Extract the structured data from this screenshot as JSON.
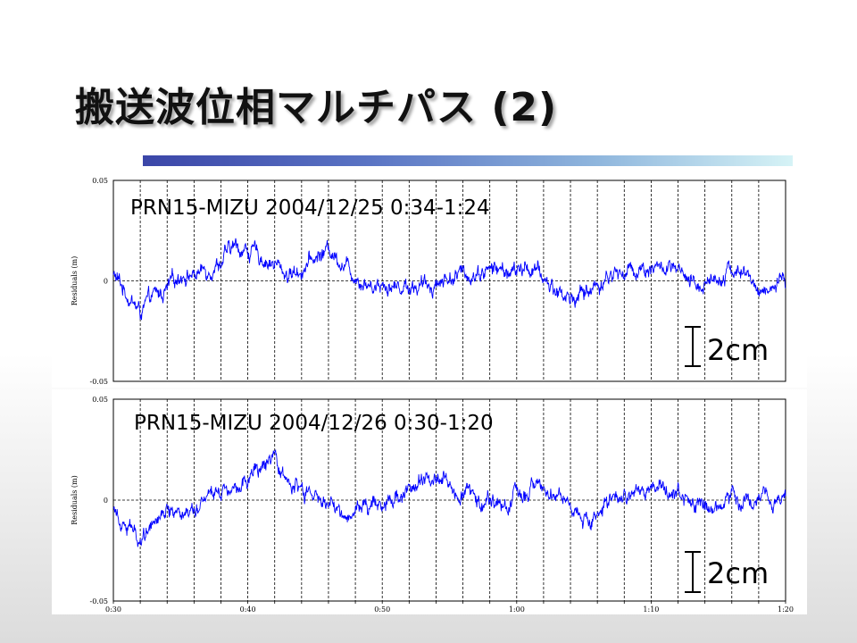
{
  "slide": {
    "title": "搬送波位相マルチパス (2)"
  },
  "chart_data": [
    {
      "type": "line",
      "title": "PRN15-MIZU 2004/12/25 0:34-1:24",
      "ylabel": "Residuals (m)",
      "ylim": [
        -0.05,
        0.05
      ],
      "y_ticks": [
        "0.05",
        "0",
        "-0.05"
      ],
      "xlim": [
        "0:30",
        "1:20"
      ],
      "x_ticks": [],
      "grid": "vertical dashed lines every 2 minutes, horizontal dashed line at 0",
      "scale_bar": "2cm",
      "color": "#0000ff",
      "series": [
        {
          "x_minutes": [
            0,
            1,
            2,
            3,
            4,
            5,
            6,
            7,
            8,
            9,
            10,
            11,
            12,
            13,
            14,
            15,
            16,
            17,
            18,
            19,
            20,
            21,
            22,
            23,
            24,
            25,
            26,
            27,
            28,
            29,
            30,
            31,
            32,
            33,
            34,
            35,
            36,
            37,
            38,
            39,
            40,
            41,
            42,
            43,
            44,
            45,
            46,
            47,
            48,
            49,
            50
          ],
          "values": [
            0.003,
            -0.006,
            -0.016,
            -0.008,
            -0.005,
            0.004,
            0.003,
            0.006,
            0.01,
            0.017,
            0.015,
            0.012,
            0.008,
            0.003,
            0.006,
            0.011,
            0.016,
            0.01,
            0.003,
            -0.002,
            -0.001,
            -0.003,
            -0.002,
            -0.003,
            -0.001,
            0.002,
            0.003,
            0.004,
            0.006,
            0.005,
            0.004,
            0.007,
            0.001,
            -0.005,
            -0.009,
            -0.006,
            -0.002,
            0.003,
            0.004,
            0.006,
            0.007,
            0.006,
            0.004,
            -0.003,
            -0.001,
            0.003,
            0.006,
            0.003,
            -0.005,
            -0.003,
            -0.002
          ]
        }
      ]
    },
    {
      "type": "line",
      "title": "PRN15-MIZU 2004/12/26 0:30-1:20",
      "ylabel": "Residuals (m)",
      "ylim": [
        -0.05,
        0.05
      ],
      "y_ticks": [
        "0.05",
        "0",
        "-0.05"
      ],
      "xlim": [
        "0:30",
        "1:20"
      ],
      "x_ticks": [
        "0:30",
        "0:40",
        "0:50",
        "1:00",
        "1:10",
        "1:20"
      ],
      "grid": "vertical dashed lines every 2 minutes, horizontal dashed line at 0",
      "scale_bar": "2cm",
      "color": "#0000ff",
      "series": [
        {
          "x_minutes": [
            0,
            1,
            2,
            3,
            4,
            5,
            6,
            7,
            8,
            9,
            10,
            11,
            12,
            13,
            14,
            15,
            16,
            17,
            18,
            19,
            20,
            21,
            22,
            23,
            24,
            25,
            26,
            27,
            28,
            29,
            30,
            31,
            32,
            33,
            34,
            35,
            36,
            37,
            38,
            39,
            40,
            41,
            42,
            43,
            44,
            45,
            46,
            47,
            48,
            49,
            50
          ],
          "values": [
            -0.002,
            -0.012,
            -0.02,
            -0.008,
            -0.004,
            -0.006,
            -0.003,
            0.004,
            0.006,
            0.008,
            0.011,
            0.016,
            0.017,
            0.009,
            0.004,
            0.001,
            -0.002,
            -0.008,
            -0.004,
            -0.002,
            -0.001,
            0.003,
            0.005,
            0.009,
            0.014,
            0.009,
            0.004,
            0.002,
            -0.001,
            -0.003,
            0.001,
            0.006,
            0.005,
            0.005,
            -0.003,
            -0.01,
            -0.007,
            -0.002,
            0.001,
            0.003,
            0.004,
            0.006,
            0.003,
            -0.003,
            -0.006,
            -0.001,
            0.003,
            0.002,
            -0.001,
            0.001,
            0.002
          ]
        }
      ]
    }
  ]
}
